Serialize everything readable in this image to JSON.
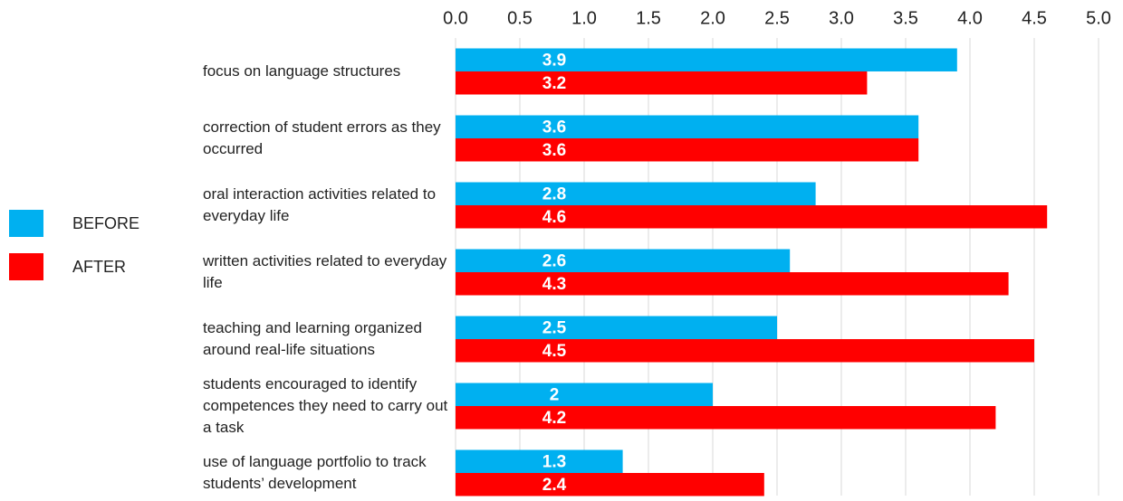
{
  "chart_data": {
    "type": "bar",
    "orientation": "horizontal",
    "categories": [
      "focus on language structures",
      "correction of student errors as they occurred",
      "oral interaction activities related to everyday life",
      "written activities related to everyday life",
      "teaching and learning organized around real-life situations",
      "students encouraged to identify competences they need to carry out a task",
      "use of language portfolio to track students’ development"
    ],
    "series": [
      {
        "name": "BEFORE",
        "color": "#00b0f0",
        "values": [
          3.9,
          3.6,
          2.8,
          2.6,
          2.5,
          2.0,
          1.3
        ]
      },
      {
        "name": "AFTER",
        "color": "#ff0000",
        "values": [
          3.2,
          3.6,
          4.6,
          4.3,
          4.5,
          4.2,
          2.4
        ]
      }
    ],
    "xlim": [
      0,
      5
    ],
    "xticks": [
      {
        "value": 0,
        "label": "0.0"
      },
      {
        "value": 0.5,
        "label": "0.5"
      },
      {
        "value": 1,
        "label": "1.0"
      },
      {
        "value": 1.5,
        "label": "1.5"
      },
      {
        "value": 2,
        "label": "2.0"
      },
      {
        "value": 2.5,
        "label": "2.5"
      },
      {
        "value": 3,
        "label": "3.0"
      },
      {
        "value": 3.5,
        "label": "3.5"
      },
      {
        "value": 4,
        "label": "4.0"
      },
      {
        "value": 4.5,
        "label": "4.5"
      },
      {
        "value": 5,
        "label": "5.0"
      }
    ],
    "grid": true,
    "legend": "left"
  }
}
